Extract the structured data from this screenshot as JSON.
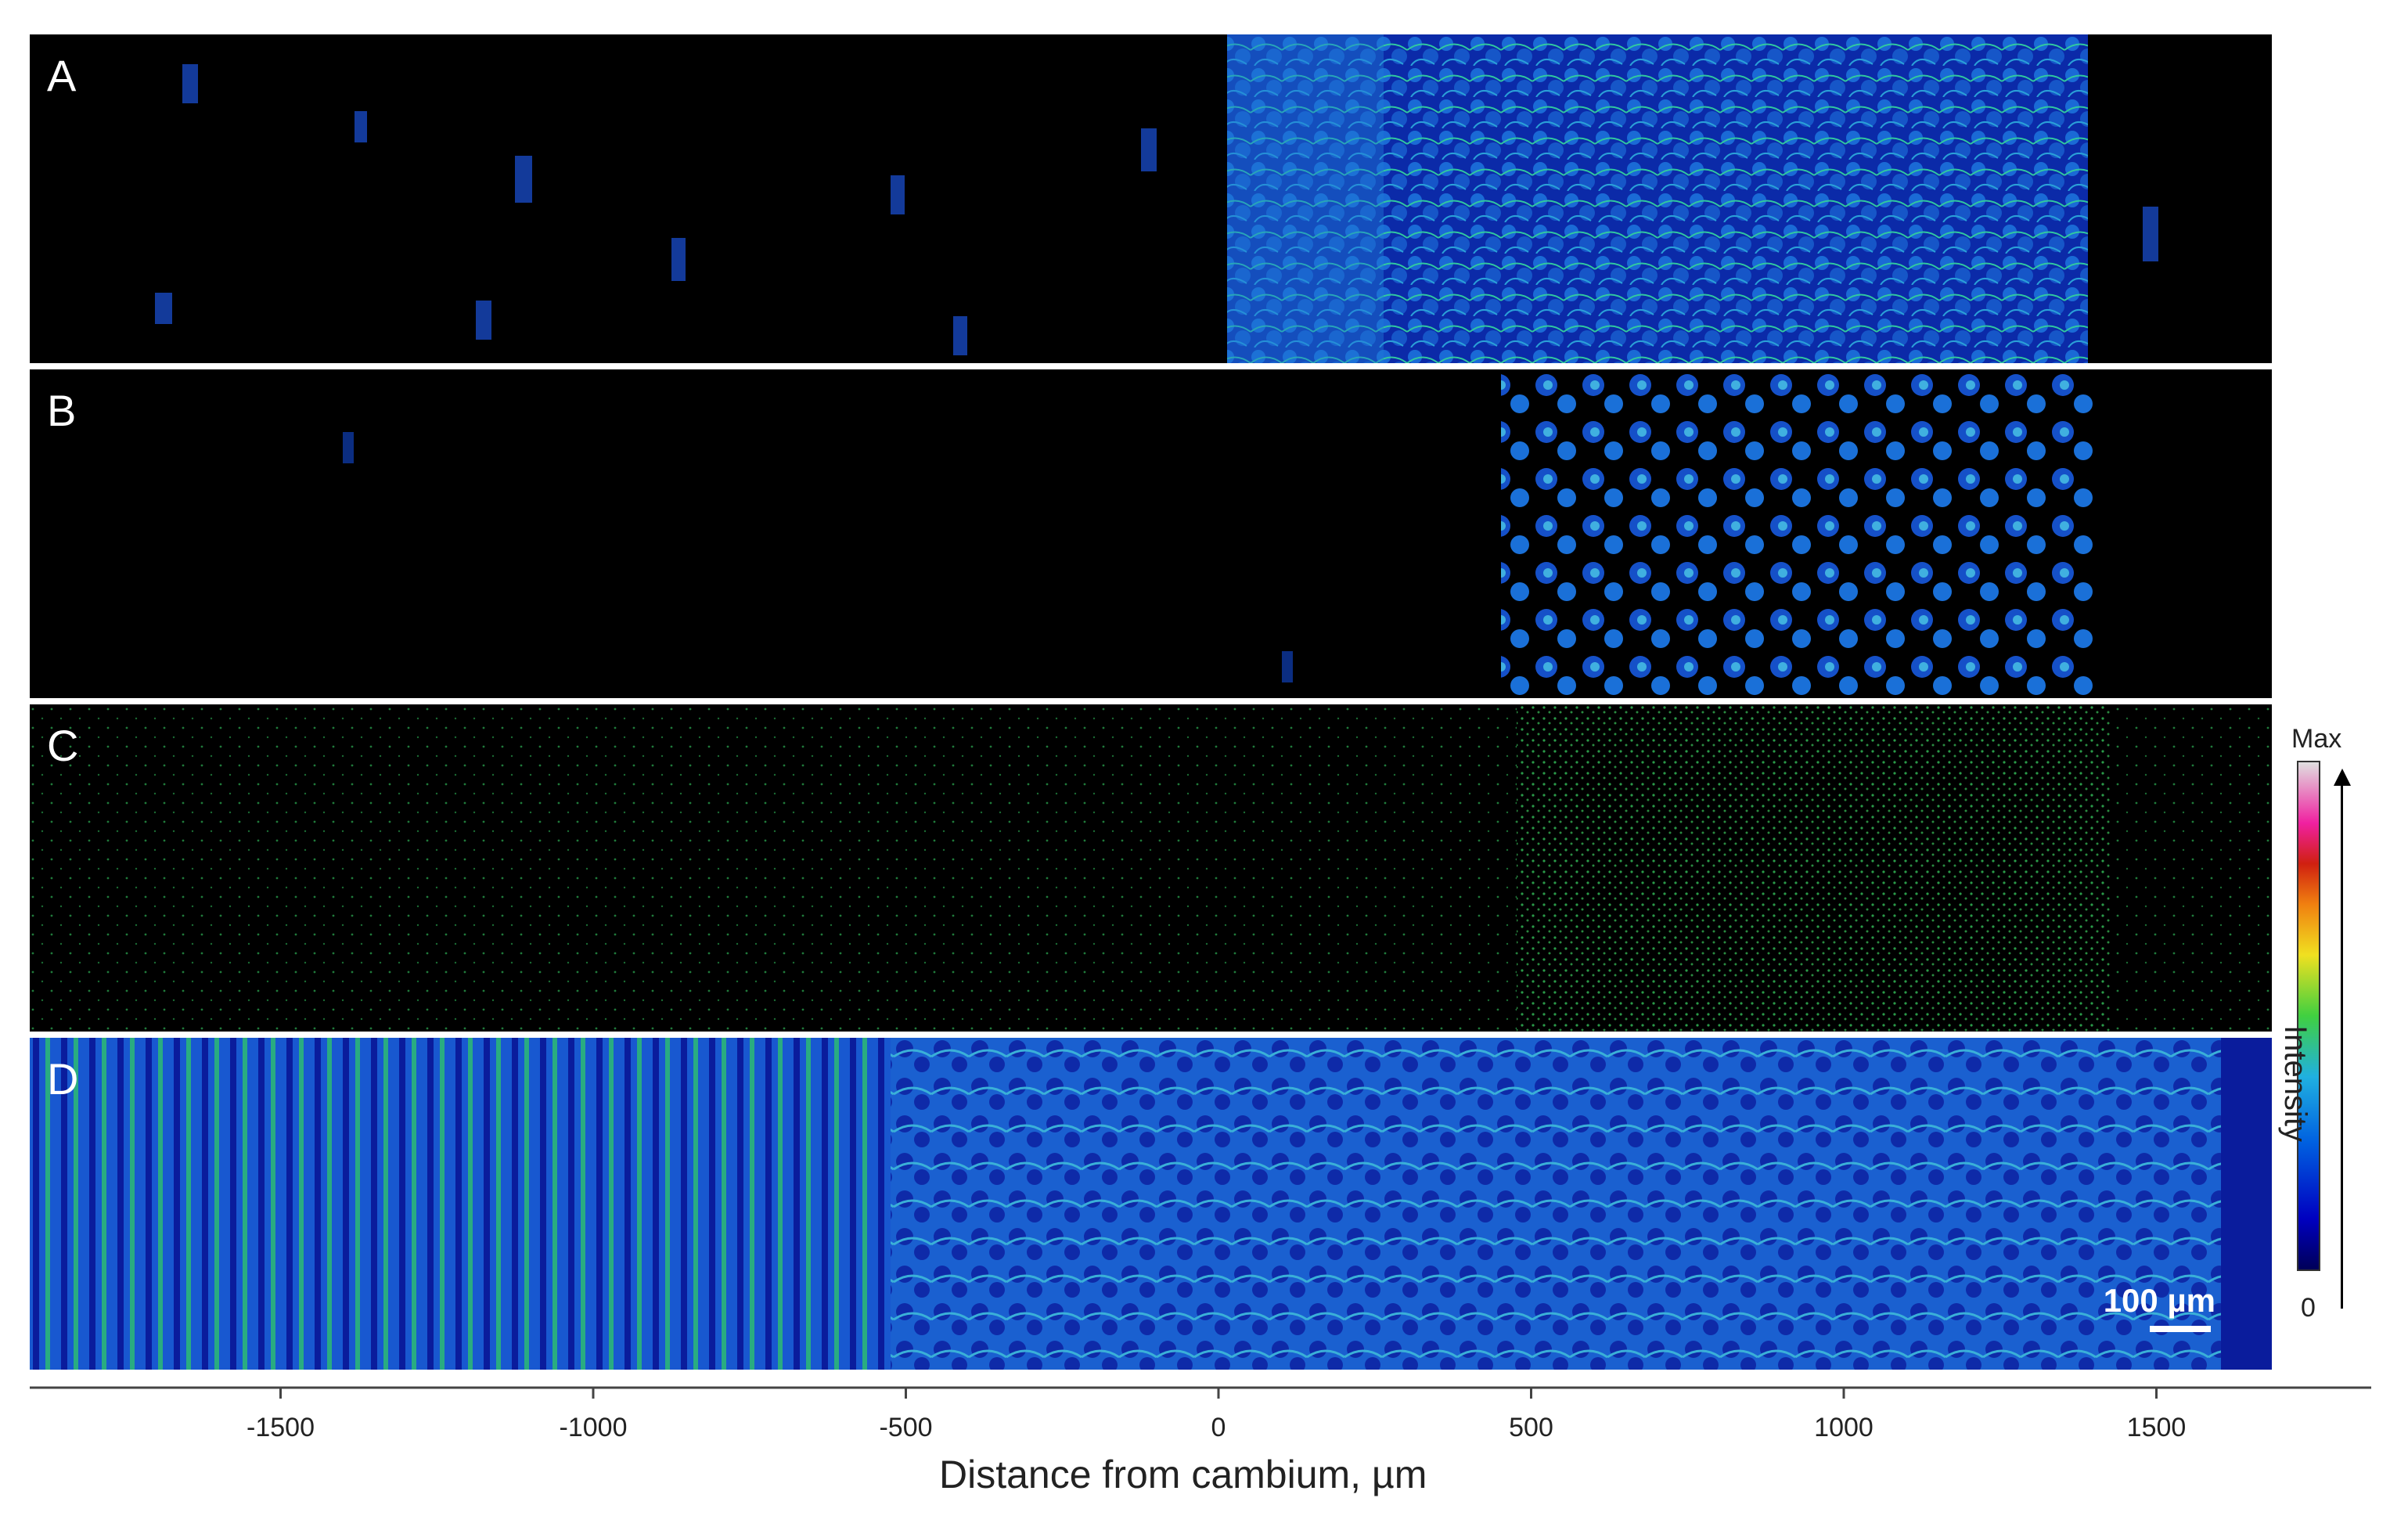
{
  "panels": [
    {
      "label": "A"
    },
    {
      "label": "B"
    },
    {
      "label": "C"
    },
    {
      "label": "D"
    }
  ],
  "scalebar": {
    "label": "100 µm"
  },
  "axis": {
    "title": "Distance from cambium, µm",
    "ticks": [
      "-1500",
      "-1000",
      "-500",
      "0",
      "500",
      "1000",
      "1500"
    ]
  },
  "colorbar": {
    "max_label": "Max",
    "min_label": "0",
    "title": "Intensity"
  },
  "colors": {
    "background": "#000000",
    "low": "#0a1c9c",
    "mid": "#2a8ad8",
    "high": "#40e040"
  }
}
